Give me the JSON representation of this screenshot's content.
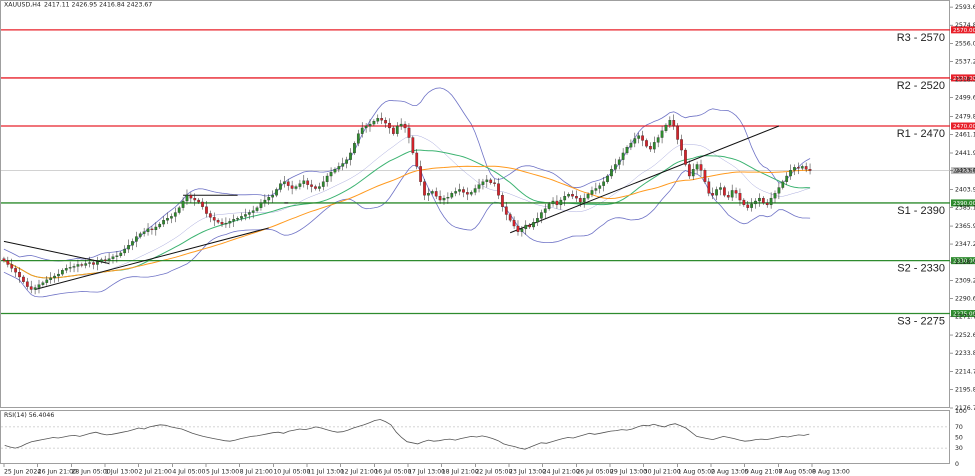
{
  "header": {
    "symbol": "XAUUSD,H4",
    "ohlc": "2417.11 2426.95 2416.84 2423.67"
  },
  "rsi_label": "RSI(14) 56.4046",
  "current_price_label": "2423.67",
  "colors": {
    "resistance": "#e8202a",
    "support": "#2e8b2e",
    "bull": "#2e8b2e",
    "bear": "#d4232b",
    "bollinger": "#6f73c6",
    "ma_fast": "#3cb371",
    "ma_slow": "#ff9a1f",
    "trendline": "#111111",
    "rsi": "#555555"
  },
  "chart_data": {
    "type": "candlestick",
    "instrument": "XAUUSD",
    "timeframe": "H4",
    "ylim": [
      2176.75,
      2600
    ],
    "y_ticks": [
      "2593.65",
      "2574.84",
      "2556.02",
      "2537.20",
      "2518.39",
      "2499.65",
      "2479.81",
      "2461.10",
      "2441.93",
      "2423.67",
      "2403.93",
      "2385.12",
      "2365.95",
      "2347.25",
      "2328.43",
      "2309.26",
      "2290.60",
      "2271.78",
      "2252.62",
      "2233.80",
      "2214.70",
      "2195.82",
      "2176.75"
    ],
    "x_ticks": [
      "25 Jun 2024",
      "26 Jun 21:00",
      "28 Jun 05:00",
      "1 Jul 13:00",
      "2 Jul 21:00",
      "4 Jul 05:00",
      "5 Jul 13:00",
      "8 Jul 21:00",
      "10 Jul 05:00",
      "11 Jul 13:00",
      "12 Jul 21:00",
      "16 Jul 05:00",
      "17 Jul 13:00",
      "18 Jul 21:00",
      "22 Jul 05:00",
      "23 Jul 13:00",
      "24 Jul 21:00",
      "26 Jul 05:00",
      "29 Jul 13:00",
      "30 Jul 21:00",
      "1 Aug 05:00",
      "2 Aug 13:00",
      "5 Aug 21:00",
      "7 Aug 05:00",
      "8 Aug 13:00"
    ],
    "levels": [
      {
        "label": "R3 - 2570",
        "price": 2570,
        "tag": "2570.00",
        "kind": "resistance"
      },
      {
        "label": "R2 - 2520",
        "price": 2520,
        "tag": "2520.00",
        "kind": "resistance"
      },
      {
        "label": "R1 - 2470",
        "price": 2470,
        "tag": "2470.00",
        "kind": "resistance"
      },
      {
        "label": "S1 - 2390",
        "price": 2390,
        "tag": "2390.00",
        "kind": "support"
      },
      {
        "label": "S2 - 2330",
        "price": 2330,
        "tag": "2330.00",
        "kind": "support"
      },
      {
        "label": "S3 - 2275",
        "price": 2275,
        "tag": "2275.00",
        "kind": "support"
      }
    ],
    "close": [
      2330,
      2326,
      2322,
      2318,
      2313,
      2308,
      2303,
      2300,
      2302,
      2305,
      2307,
      2310,
      2312,
      2314,
      2316,
      2320,
      2322,
      2323,
      2324,
      2326,
      2325,
      2327,
      2328,
      2326,
      2329,
      2331,
      2330,
      2332,
      2334,
      2335,
      2338,
      2342,
      2346,
      2350,
      2355,
      2358,
      2360,
      2363,
      2362,
      2365,
      2368,
      2372,
      2374,
      2376,
      2380,
      2385,
      2392,
      2398,
      2395,
      2393,
      2391,
      2386,
      2379,
      2375,
      2372,
      2370,
      2368,
      2369,
      2371,
      2373,
      2374,
      2376,
      2378,
      2380,
      2382,
      2385,
      2390,
      2393,
      2396,
      2398,
      2404,
      2410,
      2412,
      2408,
      2405,
      2407,
      2410,
      2413,
      2409,
      2407,
      2405,
      2407,
      2412,
      2418,
      2422,
      2425,
      2428,
      2431,
      2435,
      2442,
      2452,
      2462,
      2468,
      2470,
      2472,
      2475,
      2478,
      2476,
      2473,
      2468,
      2462,
      2470,
      2472,
      2468,
      2458,
      2442,
      2428,
      2412,
      2398,
      2400,
      2402,
      2397,
      2393,
      2395,
      2396,
      2400,
      2402,
      2404,
      2401,
      2399,
      2401,
      2405,
      2409,
      2412,
      2414,
      2411,
      2410,
      2398,
      2386,
      2378,
      2372,
      2366,
      2360,
      2363,
      2367,
      2365,
      2370,
      2374,
      2380,
      2384,
      2389,
      2392,
      2388,
      2393,
      2397,
      2399,
      2397,
      2395,
      2391,
      2395,
      2399,
      2403,
      2405,
      2408,
      2412,
      2418,
      2425,
      2430,
      2435,
      2442,
      2448,
      2452,
      2457,
      2460,
      2455,
      2449,
      2446,
      2453,
      2458,
      2465,
      2471,
      2476,
      2470,
      2456,
      2445,
      2430,
      2418,
      2425,
      2430,
      2424,
      2412,
      2400,
      2398,
      2404,
      2406,
      2398,
      2396,
      2403,
      2400,
      2393,
      2388,
      2385,
      2389,
      2392,
      2395,
      2390,
      2388,
      2395,
      2400,
      2406,
      2412,
      2418,
      2424,
      2427,
      2426,
      2428,
      2425,
      2423.67
    ],
    "series": [
      {
        "name": "RSI(14)",
        "values": [
          35,
          32,
          30,
          33,
          38,
          42,
          44,
          46,
          48,
          50,
          49,
          51,
          53,
          54,
          52,
          55,
          58,
          60,
          57,
          55,
          56,
          58,
          60,
          62,
          65,
          68,
          66,
          70,
          72,
          74,
          73,
          70,
          68,
          66,
          62,
          58,
          55,
          52,
          50,
          48,
          46,
          44,
          43,
          45,
          48,
          50,
          52,
          53,
          55,
          57,
          59,
          60,
          58,
          62,
          64,
          66,
          65,
          67,
          70,
          68,
          65,
          62,
          60,
          61,
          64,
          68,
          71,
          74,
          78,
          82,
          84,
          80,
          74,
          60,
          50,
          42,
          40,
          38,
          42,
          45,
          43,
          44,
          46,
          47,
          45,
          48,
          50,
          52,
          51,
          53,
          51,
          48,
          44,
          38,
          35,
          33,
          30,
          28,
          32,
          36,
          40,
          39,
          42,
          45,
          48,
          50,
          49,
          52,
          55,
          58,
          56,
          58,
          60,
          62,
          63,
          65,
          64,
          66,
          70,
          73,
          72,
          75,
          72,
          70,
          74,
          76,
          72,
          68,
          60,
          52,
          50,
          48,
          46,
          49,
          52,
          50,
          48,
          45,
          43,
          44,
          46,
          47,
          46,
          48,
          50,
          52,
          51,
          53,
          55,
          54,
          56.4
        ]
      }
    ],
    "rsi_ylim": [
      0,
      100
    ],
    "rsi_ticks": [
      100,
      70,
      50,
      30,
      0
    ]
  }
}
